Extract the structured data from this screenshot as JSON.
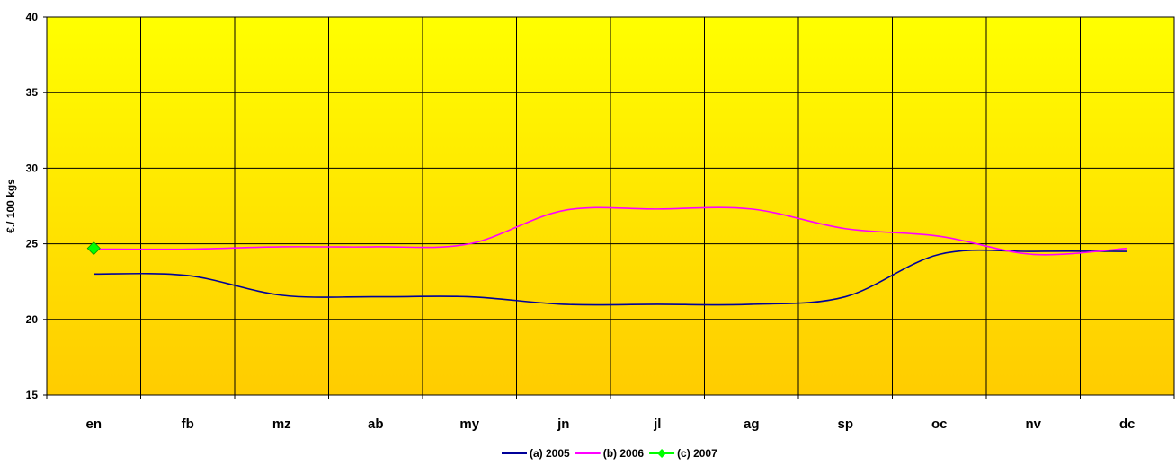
{
  "chart_data": {
    "type": "line",
    "title": "",
    "xlabel": "",
    "ylabel": "€./ 100 kgs",
    "ylim": [
      15,
      40
    ],
    "yticks": [
      15,
      20,
      25,
      30,
      35,
      40
    ],
    "grid": true,
    "legend_position": "bottom",
    "categories": [
      "en",
      "fb",
      "mz",
      "ab",
      "my",
      "jn",
      "jl",
      "ag",
      "sp",
      "oc",
      "nv",
      "dc"
    ],
    "series": [
      {
        "name": "(a) 2005",
        "color": "#000099",
        "marker": "none",
        "values": [
          23.0,
          22.9,
          21.6,
          21.5,
          21.5,
          21.0,
          21.0,
          21.0,
          21.5,
          24.3,
          24.5,
          24.5
        ]
      },
      {
        "name": "(b) 2006",
        "color": "#ff00ff",
        "marker": "none",
        "values": [
          24.65,
          24.65,
          24.8,
          24.8,
          25.0,
          27.2,
          27.3,
          27.3,
          26.0,
          25.5,
          24.3,
          24.7
        ]
      },
      {
        "name": "(c) 2007",
        "color": "#00ff00",
        "marker": "diamond",
        "values": [
          24.7,
          null,
          null,
          null,
          null,
          null,
          null,
          null,
          null,
          null,
          null,
          null
        ]
      }
    ],
    "background_gradient": [
      "#ffff00",
      "#ffcc00"
    ],
    "grid_color": "#000000",
    "frame_color": "#000000"
  }
}
